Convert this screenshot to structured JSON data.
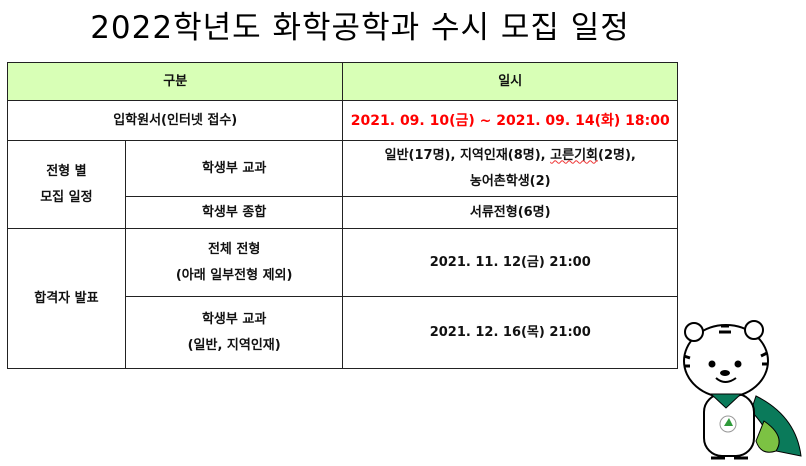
{
  "title": "2022학년도 화학공학과 수시 모집 일정",
  "table": {
    "headers": [
      "구분",
      "일시"
    ],
    "application": {
      "label": "입학원서(인터넷 접수)",
      "date": "2021. 09. 10(금) ~ 2021. 09. 14(화) 18:00"
    },
    "recruit": {
      "label_line1": "전형 별",
      "label_line2": "모집 일정",
      "rows": [
        {
          "type": "학생부 교과",
          "detail_a": "일반(17명), 지역인재(8명), ",
          "detail_b": "고른기회",
          "detail_c": "(2명),",
          "detail_line2": "농어촌학생(2)"
        },
        {
          "type": "학생부 종합",
          "detail": "서류전형(6명)"
        }
      ]
    },
    "announce": {
      "label": "합격자 발표",
      "rows": [
        {
          "type_line1": "전체 전형",
          "type_line2": "(아래 일부전형 제외)",
          "date": "2021. 11. 12(금) 21:00"
        },
        {
          "type_line1": "학생부 교과",
          "type_line2": "(일반, 지역인재)",
          "date": "2021. 12. 16(목) 21:00"
        }
      ]
    }
  },
  "colors": {
    "header_bg": "#d8ffb6",
    "highlight": "#ff0000"
  }
}
